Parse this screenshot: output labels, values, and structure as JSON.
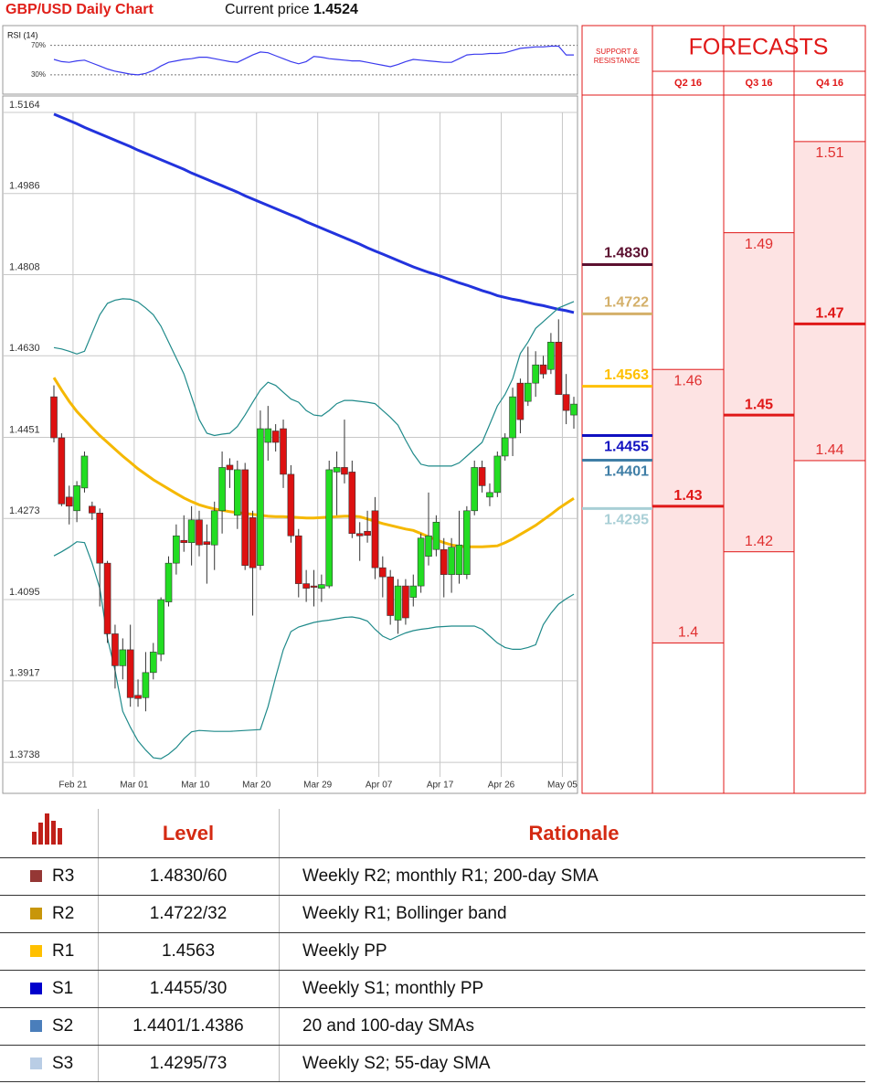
{
  "header": {
    "title": "GBP/USD Daily Chart",
    "price_label": "Current price",
    "price": "1.4524"
  },
  "chart_data": [
    {
      "type": "candlestick",
      "categories": [
        null,
        null,
        "Feb 21",
        null,
        null,
        null,
        null,
        null,
        null,
        null,
        "Mar 01",
        null,
        null,
        null,
        null,
        null,
        null,
        null,
        "Mar 10",
        null,
        null,
        null,
        null,
        null,
        null,
        null,
        "Mar 20",
        null,
        null,
        null,
        null,
        null,
        null,
        null,
        "Mar 29",
        null,
        null,
        null,
        null,
        null,
        null,
        null,
        "Apr 07",
        null,
        null,
        null,
        null,
        null,
        null,
        null,
        "Apr 17",
        null,
        null,
        null,
        null,
        null,
        null,
        null,
        "Apr 26",
        null,
        null,
        null,
        null,
        null,
        null,
        null,
        "May 05",
        null,
        null
      ],
      "open": [
        1.454,
        1.445,
        1.432,
        1.429,
        1.434,
        1.43,
        1.4285,
        1.4175,
        1.402,
        1.395,
        1.3985,
        1.3885,
        1.388,
        1.3935,
        1.3975,
        1.409,
        1.4175,
        1.4225,
        1.422,
        1.427,
        1.4222,
        1.4215,
        1.429,
        1.439,
        1.428,
        1.438,
        1.4275,
        1.417,
        1.444,
        1.4465,
        1.447,
        1.437,
        1.4235,
        1.413,
        1.4125,
        1.412,
        1.4125,
        1.4375,
        1.4385,
        1.4375,
        1.424,
        1.4245,
        1.429,
        1.4165,
        1.4145,
        1.405,
        1.4125,
        1.41,
        1.4125,
        1.419,
        1.4205,
        1.4205,
        1.415,
        1.415,
        1.415,
        1.429,
        1.4385,
        1.432,
        1.433,
        1.441,
        1.445,
        1.457,
        1.453,
        1.457,
        1.461,
        1.46,
        1.466,
        1.4545,
        1.45
      ],
      "high": [
        1.4565,
        1.446,
        1.4345,
        1.4355,
        1.442,
        1.431,
        1.4295,
        1.418,
        1.404,
        1.401,
        1.404,
        1.392,
        1.398,
        1.4,
        1.41,
        1.419,
        1.426,
        1.428,
        1.43,
        1.429,
        1.426,
        1.431,
        1.442,
        1.4405,
        1.44,
        1.4395,
        1.429,
        1.451,
        1.452,
        1.448,
        1.449,
        1.439,
        1.425,
        1.416,
        1.416,
        1.415,
        1.44,
        1.442,
        1.449,
        1.44,
        1.4265,
        1.429,
        1.432,
        1.419,
        1.416,
        1.414,
        1.414,
        1.415,
        1.424,
        1.433,
        1.428,
        1.423,
        1.423,
        1.429,
        1.43,
        1.44,
        1.44,
        1.435,
        1.442,
        1.446,
        1.456,
        1.458,
        1.465,
        1.464,
        1.463,
        1.468,
        1.471,
        1.459,
        1.454
      ],
      "low": [
        1.444,
        1.43,
        1.426,
        1.4265,
        1.433,
        1.427,
        1.408,
        1.4,
        1.39,
        1.392,
        1.386,
        1.386,
        1.385,
        1.392,
        1.396,
        1.408,
        1.415,
        1.42,
        1.417,
        1.419,
        1.413,
        1.416,
        1.424,
        1.434,
        1.425,
        1.416,
        1.406,
        1.416,
        1.44,
        1.442,
        1.434,
        1.422,
        1.41,
        1.409,
        1.408,
        1.409,
        1.412,
        1.428,
        1.435,
        1.423,
        1.418,
        1.422,
        1.414,
        1.41,
        1.404,
        1.402,
        1.404,
        1.408,
        1.411,
        1.417,
        1.419,
        1.41,
        1.411,
        1.413,
        1.414,
        1.428,
        1.433,
        1.43,
        1.432,
        1.44,
        1.441,
        1.446,
        1.452,
        1.454,
        1.458,
        1.459,
        1.456,
        1.448,
        1.447
      ],
      "close": [
        1.445,
        1.4305,
        1.43,
        1.4345,
        1.441,
        1.4285,
        1.4175,
        1.402,
        1.395,
        1.3985,
        1.388,
        1.3878,
        1.3935,
        1.398,
        1.4095,
        1.4175,
        1.4235,
        1.422,
        1.427,
        1.4215,
        1.4216,
        1.429,
        1.4385,
        1.438,
        1.438,
        1.417,
        1.4165,
        1.447,
        1.447,
        1.444,
        1.437,
        1.4235,
        1.413,
        1.412,
        1.4122,
        1.4128,
        1.438,
        1.4385,
        1.437,
        1.424,
        1.4235,
        1.4236,
        1.4165,
        1.4145,
        1.406,
        1.4125,
        1.4055,
        1.4125,
        1.423,
        1.4235,
        1.4265,
        1.415,
        1.421,
        1.4215,
        1.429,
        1.4385,
        1.4345,
        1.433,
        1.441,
        1.445,
        1.454,
        1.449,
        1.457,
        1.461,
        1.459,
        1.466,
        1.4545,
        1.451,
        1.4524
      ],
      "up_color": "#22dd22",
      "down_color": "#dd1111",
      "lines": [
        {
          "color": "#2233dd",
          "values": [
            1.516,
            1.5153,
            1.5146,
            1.5139,
            1.5131,
            1.5124,
            1.5117,
            1.511,
            1.5103,
            1.5096,
            1.5089,
            1.5081,
            1.5074,
            1.5067,
            1.506,
            1.5053,
            1.5046,
            1.5039,
            1.5031,
            1.5024,
            1.5017,
            1.501,
            1.5003,
            1.4996,
            1.4989,
            1.4981,
            1.4974,
            1.4967,
            1.496,
            1.4953,
            1.4946,
            1.4939,
            1.4932,
            1.4924,
            1.4917,
            1.491,
            1.4903,
            1.4896,
            1.4889,
            1.4882,
            1.4875,
            1.4867,
            1.486,
            1.4853,
            1.4846,
            1.4839,
            1.4832,
            1.4825,
            1.4819,
            1.4813,
            1.4808,
            1.4802,
            1.4796,
            1.479,
            1.4785,
            1.4779,
            1.4773,
            1.4768,
            1.4762,
            1.4758,
            1.4754,
            1.4751,
            1.4747,
            1.4743,
            1.474,
            1.4736,
            1.4732,
            1.4729,
            1.4725
          ]
        },
        {
          "color": "#f5b800",
          "values": [
            1.4582,
            1.4555,
            1.453,
            1.4508,
            1.449,
            1.4472,
            1.4455,
            1.444,
            1.4425,
            1.441,
            1.4396,
            1.4382,
            1.437,
            1.4358,
            1.4348,
            1.4338,
            1.4328,
            1.4318,
            1.431,
            1.4303,
            1.4298,
            1.4294,
            1.4291,
            1.4288,
            1.4286,
            1.4284,
            1.4282,
            1.428,
            1.4278,
            1.4277,
            1.4277,
            1.4276,
            1.4275,
            1.4274,
            1.4274,
            1.4275,
            1.4276,
            1.4277,
            1.4278,
            1.4278,
            1.4277,
            1.4272,
            1.4267,
            1.4262,
            1.4258,
            1.4254,
            1.425,
            1.4247,
            1.424,
            1.4233,
            1.4226,
            1.422,
            1.4215,
            1.4212,
            1.4211,
            1.4211,
            1.4211,
            1.4212,
            1.4213,
            1.422,
            1.4228,
            1.4238,
            1.4248,
            1.4258,
            1.427,
            1.4282,
            1.4295,
            1.4306,
            1.4317
          ]
        },
        {
          "color": "#1f8a8a",
          "values": [
            1.4648,
            1.4645,
            1.464,
            1.4634,
            1.464,
            1.468,
            1.472,
            1.4745,
            1.4752,
            1.4755,
            1.4754,
            1.4748,
            1.4735,
            1.472,
            1.4695,
            1.466,
            1.4625,
            1.459,
            1.454,
            1.449,
            1.446,
            1.4455,
            1.4458,
            1.446,
            1.4475,
            1.45,
            1.4528,
            1.4555,
            1.4572,
            1.4565,
            1.455,
            1.4535,
            1.4528,
            1.451,
            1.45,
            1.4498,
            1.451,
            1.4525,
            1.4532,
            1.4532,
            1.453,
            1.4528,
            1.4525,
            1.451,
            1.4495,
            1.4478,
            1.4445,
            1.4415,
            1.4392,
            1.4388,
            1.4388,
            1.4388,
            1.4388,
            1.4395,
            1.441,
            1.4425,
            1.444,
            1.448,
            1.452,
            1.4545,
            1.458,
            1.4635,
            1.466,
            1.469,
            1.4705,
            1.472,
            1.4735,
            1.4742,
            1.4749
          ]
        },
        {
          "color": "#1f8a8a",
          "values": [
            1.4191,
            1.42,
            1.421,
            1.4222,
            1.422,
            1.4175,
            1.412,
            1.401,
            1.394,
            1.385,
            1.3815,
            1.3785,
            1.3765,
            1.3748,
            1.3746,
            1.3756,
            1.377,
            1.379,
            1.3805,
            1.3808,
            1.3807,
            1.3806,
            1.3806,
            1.3806,
            1.3807,
            1.3808,
            1.3809,
            1.381,
            1.386,
            1.3925,
            1.3985,
            1.4025,
            1.4035,
            1.404,
            1.4045,
            1.4048,
            1.405,
            1.4053,
            1.4056,
            1.4057,
            1.4054,
            1.4048,
            1.403,
            1.4015,
            1.4007,
            1.4015,
            1.4022,
            1.4027,
            1.403,
            1.4032,
            1.4035,
            1.4036,
            1.4037,
            1.4037,
            1.4037,
            1.4037,
            1.403,
            1.4015,
            1.4,
            1.399,
            1.3986,
            1.3986,
            1.399,
            1.3996,
            1.404,
            1.4065,
            1.4085,
            1.4097,
            1.4107
          ]
        }
      ],
      "ylim": [
        1.367,
        1.52
      ],
      "yticks": [
        1.3738,
        1.3917,
        1.4095,
        1.4273,
        1.4451,
        {
          "value": 1.463,
          "label": "1.4630"
        },
        1.4808,
        1.4986,
        1.5164
      ],
      "grid": true
    },
    {
      "type": "line",
      "title": "RSI (14)",
      "color": "#3a3aee",
      "values": [
        51,
        48,
        47,
        49,
        50,
        46,
        42,
        38,
        35,
        33,
        31,
        30,
        32,
        36,
        42,
        47,
        49,
        51,
        52,
        54,
        54,
        52,
        50,
        48,
        47,
        52,
        57,
        61,
        60,
        56,
        52,
        48,
        45,
        48,
        55,
        54,
        52,
        51,
        50,
        49,
        49,
        47,
        45,
        43,
        41,
        44,
        48,
        51,
        50,
        49,
        48,
        47,
        47,
        52,
        57,
        58,
        58,
        59,
        59,
        60,
        63,
        66,
        67,
        68,
        68,
        69,
        69,
        57,
        57
      ],
      "ylim": [
        15,
        82
      ],
      "yticks": [
        {
          "value": 30,
          "label": "30%"
        },
        {
          "value": 70,
          "label": "70%"
        }
      ]
    },
    {
      "type": "range",
      "title": "FORECASTS",
      "levels_title": "SUPPORT & RESISTANCE",
      "levels": [
        {
          "value": 1.483,
          "label": "1.4830",
          "color": "#5c1030"
        },
        {
          "value": 1.4722,
          "color": "#d4b06a"
        },
        {
          "value": 1.4563,
          "color": "#ffc000"
        },
        {
          "value": 1.4455,
          "color": "#1010c0"
        },
        {
          "value": 1.4401,
          "color": "#3f7ea6"
        },
        {
          "value": 1.4295,
          "color": "#a9cfd6"
        }
      ],
      "categories": [
        "Q2 16",
        "Q3 16",
        "Q4 16"
      ],
      "high": [
        1.46,
        1.49,
        1.51
      ],
      "low": [
        1.4,
        1.42,
        1.44
      ],
      "median": [
        1.43,
        1.45,
        1.47
      ],
      "color": "#e01818",
      "ylim": [
        1.367,
        1.52
      ]
    }
  ],
  "table": {
    "columns": [
      "Level",
      "Rationale"
    ],
    "rows": [
      {
        "name": "R3",
        "level": "1.4830/60",
        "rationale": "Weekly R2; monthly R1; 200-day SMA",
        "color": "#953735"
      },
      {
        "name": "R2",
        "level": "1.4722/32",
        "rationale": "Weekly R1; Bollinger band",
        "color": "#c8960a"
      },
      {
        "name": "R1",
        "level": "1.4563",
        "rationale": "Weekly PP",
        "color": "#ffc000"
      },
      {
        "name": "S1",
        "level": "1.4455/30",
        "rationale": "Weekly S1; monthly PP",
        "color": "#0000cc"
      },
      {
        "name": "S2",
        "level": "1.4401/1.4386",
        "rationale": "20 and 100-day SMAs",
        "color": "#4a7ebb"
      },
      {
        "name": "S3",
        "level": "1.4295/73",
        "rationale": "Weekly S2; 55-day SMA",
        "color": "#b9cde5"
      }
    ]
  }
}
